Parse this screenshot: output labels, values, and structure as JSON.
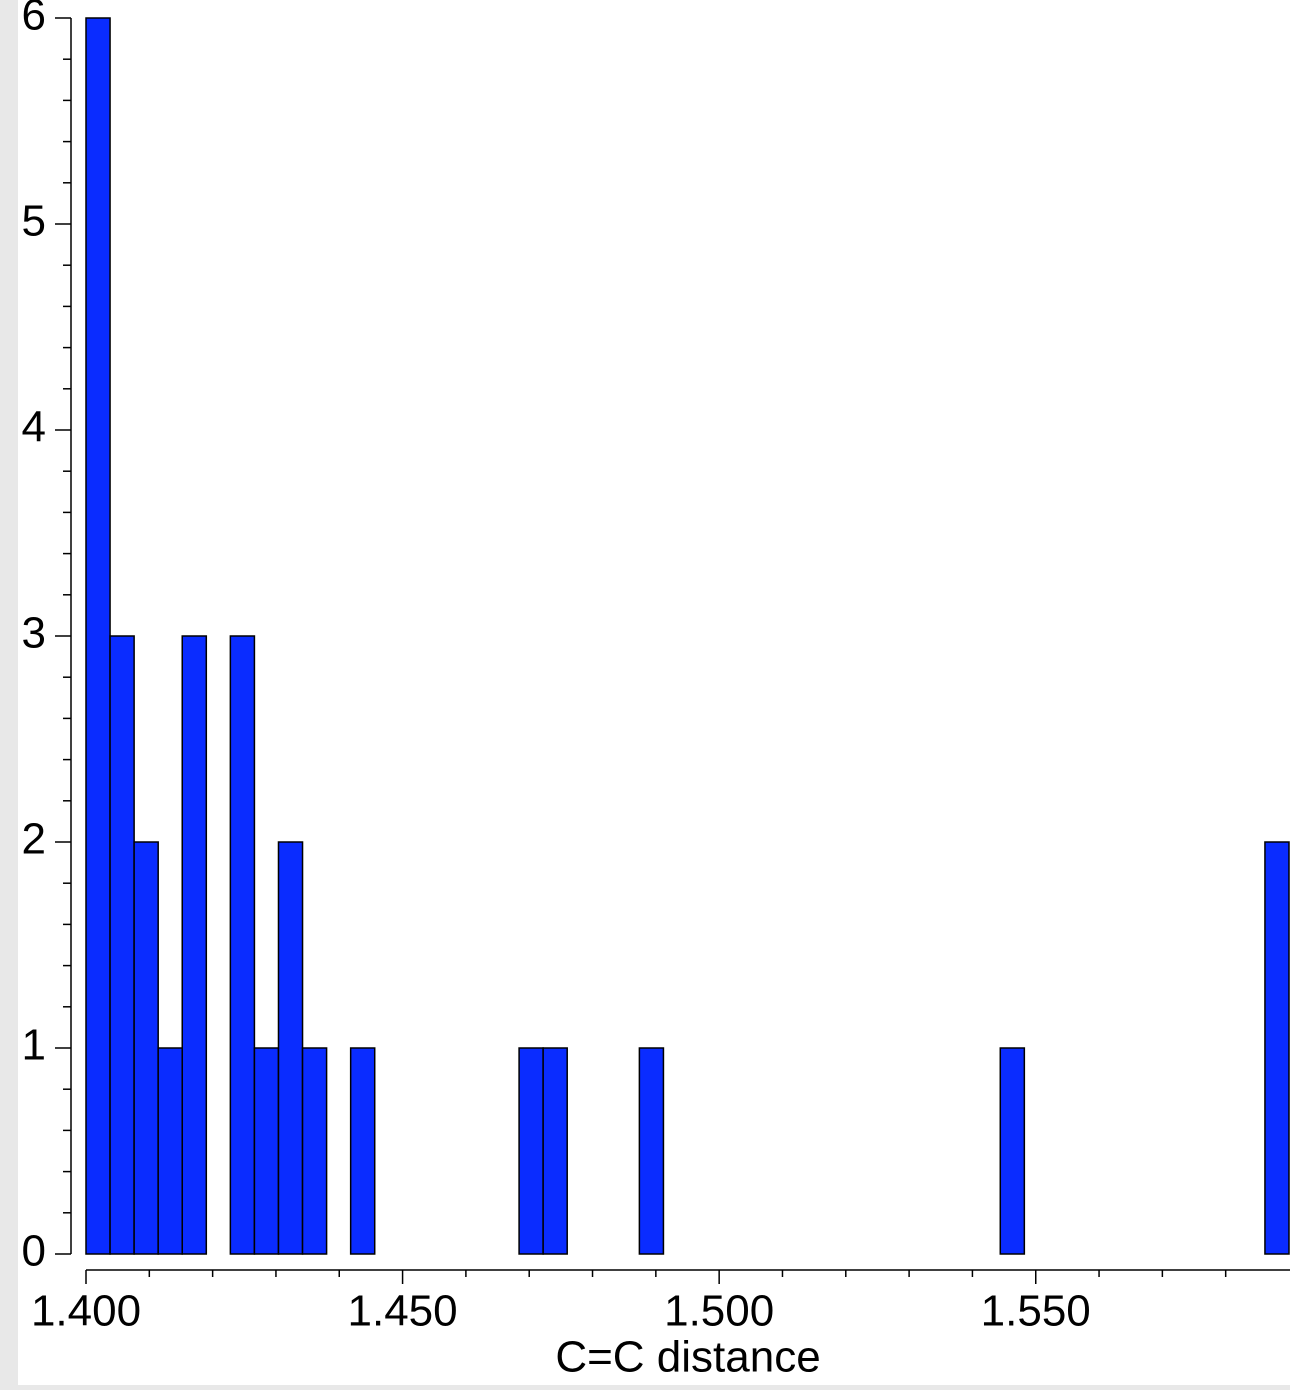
{
  "chart_data": {
    "type": "histogram",
    "xlabel": "C=C distance",
    "color": "#0a2cff",
    "bins": [
      1.4,
      1.4038,
      1.4076,
      1.4114,
      1.4152,
      1.419,
      1.4228,
      1.4266,
      1.4304,
      1.4342,
      1.438,
      1.4418,
      1.4456,
      1.4494,
      1.4532,
      1.457,
      1.4608,
      1.4646,
      1.4684,
      1.4722,
      1.476,
      1.4798,
      1.4836,
      1.4874,
      1.4912,
      1.495,
      1.4988,
      1.5026,
      1.5064,
      1.5102,
      1.514,
      1.5178,
      1.5216,
      1.5254,
      1.5292,
      1.533,
      1.5368,
      1.5406,
      1.5444,
      1.5482,
      1.552,
      1.5558,
      1.5596,
      1.5634,
      1.5672,
      1.571,
      1.5748,
      1.5786,
      1.5824,
      1.5862,
      1.59
    ],
    "values": [
      6,
      3,
      2,
      1,
      3,
      0,
      3,
      1,
      2,
      1,
      0,
      1,
      0,
      0,
      0,
      0,
      0,
      0,
      1,
      1,
      0,
      0,
      0,
      1,
      0,
      0,
      0,
      0,
      0,
      0,
      0,
      0,
      0,
      0,
      0,
      0,
      0,
      0,
      1,
      0,
      0,
      0,
      0,
      0,
      0,
      0,
      0,
      0,
      0,
      2
    ],
    "xlim": [
      1.4,
      1.59
    ],
    "xticks": [
      {
        "value": 1.4,
        "label": "1.400"
      },
      {
        "value": 1.45,
        "label": "1.450"
      },
      {
        "value": 1.5,
        "label": "1.500"
      },
      {
        "value": 1.55,
        "label": "1.550"
      }
    ],
    "xminorticks": [
      1.41,
      1.42,
      1.43,
      1.44,
      1.46,
      1.47,
      1.48,
      1.49,
      1.51,
      1.52,
      1.53,
      1.54,
      1.56,
      1.57,
      1.58
    ],
    "ylim": [
      0,
      6
    ],
    "yticks": [
      0,
      1,
      2,
      3,
      4,
      5,
      6
    ],
    "yminorticks": [
      0.2,
      0.4,
      0.6,
      0.8,
      1.2,
      1.4,
      1.6,
      1.8,
      2.2,
      2.4,
      2.6,
      2.8,
      3.2,
      3.4,
      3.6,
      3.8,
      4.2,
      4.4,
      4.6,
      4.8,
      5.2,
      5.4,
      5.6,
      5.8
    ]
  }
}
